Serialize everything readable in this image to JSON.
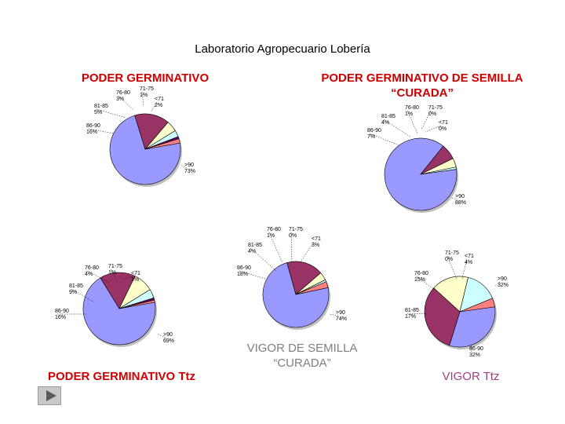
{
  "title": "Laboratorio Agropecuario Lobería",
  "headings": {
    "pg": "PODER GERMINATIVO",
    "pg_curada": "PODER GERMINATIVO DE SEMILLA “CURADA”",
    "pg_ttz": "PODER GERMINATIVO Ttz",
    "vigor_curada": "VIGOR DE SEMILLA “CURADA”",
    "vigor_ttz": "VIGOR Ttz"
  },
  "colors": {
    "gt90": "#9999ff",
    "c86_90": "#993366",
    "c81_85": "#ffffcc",
    "c76_80": "#ccffff",
    "c71_75": "#660066",
    "lt71": "#ff8080"
  },
  "chart_data": [
    {
      "id": "pg",
      "type": "pie",
      "title": "PODER GERMINATIVO",
      "slices": [
        {
          "label": ">90",
          "value": 73,
          "display": "73%",
          "color": "#9999ff"
        },
        {
          "label": "86-90",
          "value": 16,
          "display": "16%",
          "color": "#993366"
        },
        {
          "label": "81-85",
          "value": 5,
          "display": "5%",
          "color": "#ffffcc"
        },
        {
          "label": "76-80",
          "value": 3,
          "display": "3%",
          "color": "#ccffff"
        },
        {
          "label": "71-75",
          "value": 1,
          "display": "1%",
          "color": "#660066"
        },
        {
          "label": "<71",
          "value": 2,
          "display": "2%",
          "color": "#ff8080"
        }
      ]
    },
    {
      "id": "pg_curada",
      "type": "pie",
      "title": "PODER GERMINATIVO DE SEMILLA “CURADA”",
      "slices": [
        {
          "label": ">90",
          "value": 88,
          "display": "88%",
          "color": "#9999ff"
        },
        {
          "label": "86-90",
          "value": 7,
          "display": "7%",
          "color": "#993366"
        },
        {
          "label": "81-85",
          "value": 4,
          "display": "4%",
          "color": "#ffffcc"
        },
        {
          "label": "76-80",
          "value": 1,
          "display": "1%",
          "color": "#ccffff"
        },
        {
          "label": "71-75",
          "value": 0,
          "display": "0%",
          "color": "#660066"
        },
        {
          "label": "<71",
          "value": 0,
          "display": "0%",
          "color": "#ff8080"
        }
      ]
    },
    {
      "id": "pg_ttz",
      "type": "pie",
      "title": "PODER GERMINATIVO Ttz",
      "slices": [
        {
          "label": ">90",
          "value": 69,
          "display": "69%",
          "color": "#9999ff"
        },
        {
          "label": "86-90",
          "value": 16,
          "display": "16%",
          "color": "#993366"
        },
        {
          "label": "81-85",
          "value": 9,
          "display": "9%",
          "color": "#ffffcc"
        },
        {
          "label": "76-80",
          "value": 4,
          "display": "4%",
          "color": "#ccffff"
        },
        {
          "label": "71-75",
          "value": 1,
          "display": "1%",
          "color": "#660066"
        },
        {
          "label": "<71",
          "value": 1,
          "display": "1%",
          "color": "#ff8080"
        }
      ]
    },
    {
      "id": "vigor_curada",
      "type": "pie",
      "title": "VIGOR DE SEMILLA “CURADA”",
      "slices": [
        {
          "label": ">90",
          "value": 74,
          "display": "74%",
          "color": "#9999ff"
        },
        {
          "label": "86-90",
          "value": 18,
          "display": "18%",
          "color": "#993366"
        },
        {
          "label": "81-85",
          "value": 4,
          "display": "4%",
          "color": "#ffffcc"
        },
        {
          "label": "76-80",
          "value": 1,
          "display": "1%",
          "color": "#ccffff"
        },
        {
          "label": "71-75",
          "value": 0,
          "display": "0%",
          "color": "#660066"
        },
        {
          "label": "<71",
          "value": 3,
          "display": "3%",
          "color": "#ff8080"
        }
      ]
    },
    {
      "id": "vigor_ttz",
      "type": "pie",
      "title": "VIGOR Ttz",
      "slices": [
        {
          "label": ">90",
          "value": 32,
          "display": "32%",
          "color": "#9999ff"
        },
        {
          "label": "86-90",
          "value": 32,
          "display": "32%",
          "color": "#993366"
        },
        {
          "label": "81-85",
          "value": 17,
          "display": "17%",
          "color": "#ffffcc"
        },
        {
          "label": "76-80",
          "value": 15,
          "display": "15%",
          "color": "#ccffff"
        },
        {
          "label": "71-75",
          "value": 0,
          "display": "0%",
          "color": "#660066"
        },
        {
          "label": "<71",
          "value": 4,
          "display": "4%",
          "color": "#ff8080"
        }
      ]
    }
  ]
}
